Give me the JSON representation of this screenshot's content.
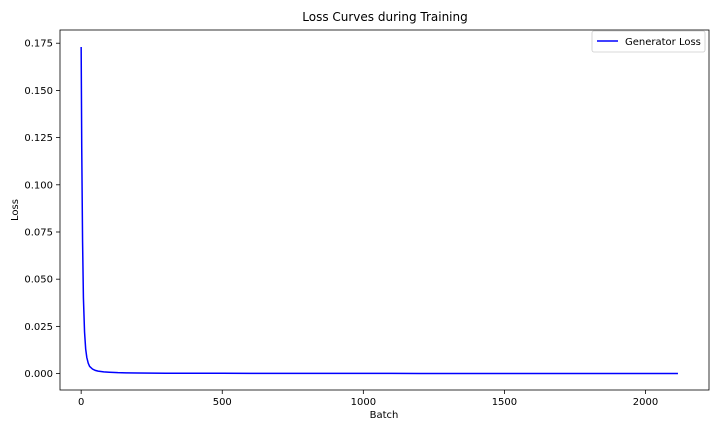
{
  "chart_data": {
    "type": "line",
    "title": "Loss Curves during Training",
    "xlabel": "Batch",
    "ylabel": "Loss",
    "xlim": [
      -75,
      2225
    ],
    "ylim": [
      -0.0087,
      0.182
    ],
    "xticks": [
      0,
      500,
      1000,
      1500,
      2000
    ],
    "xtick_labels": [
      "0",
      "500",
      "1000",
      "1500",
      "2000"
    ],
    "yticks": [
      0.0,
      0.025,
      0.05,
      0.075,
      0.1,
      0.125,
      0.15,
      0.175
    ],
    "ytick_labels": [
      "0.000",
      "0.025",
      "0.050",
      "0.075",
      "0.100",
      "0.125",
      "0.150",
      "0.175"
    ],
    "grid": false,
    "legend_position": "upper right",
    "series": [
      {
        "name": "Generator Loss",
        "color": "#0000ff",
        "x": [
          0,
          2,
          5,
          8,
          12,
          16,
          20,
          25,
          30,
          40,
          50,
          60,
          80,
          100,
          130,
          160,
          200,
          250,
          300,
          350,
          400,
          500,
          600,
          700,
          800,
          900,
          1000,
          1100,
          1200,
          1300,
          1400,
          1500,
          1600,
          1700,
          1800,
          1900,
          2000,
          2100,
          2115
        ],
        "y": [
          0.173,
          0.12,
          0.07,
          0.04,
          0.022,
          0.013,
          0.0085,
          0.0055,
          0.0038,
          0.0024,
          0.0017,
          0.0013,
          0.0009,
          0.0007,
          0.0005,
          0.0004,
          0.0003,
          0.00025,
          0.0002,
          0.00018,
          0.00016,
          0.00014,
          0.00012,
          0.00011,
          0.0001,
          9e-05,
          8e-05,
          8e-05,
          7e-05,
          7e-05,
          6e-05,
          6e-05,
          6e-05,
          5e-05,
          5e-05,
          5e-05,
          5e-05,
          4e-05,
          4e-05
        ]
      }
    ]
  }
}
